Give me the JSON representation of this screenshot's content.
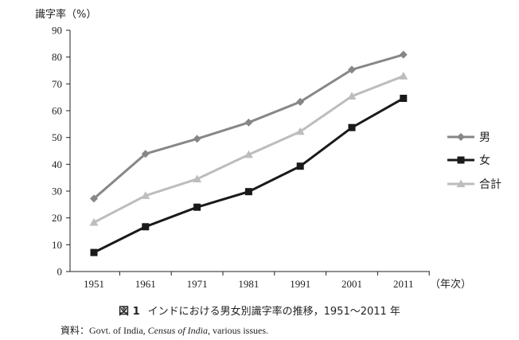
{
  "chart_data": {
    "type": "line",
    "ylabel": "識字率（%）",
    "xlabel": "（年次）",
    "ylim": [
      0,
      90
    ],
    "yticks": [
      0,
      10,
      20,
      30,
      40,
      50,
      60,
      70,
      80,
      90
    ],
    "x": [
      "1951",
      "1961",
      "1971",
      "1981",
      "1991",
      "2001",
      "2011"
    ],
    "series": [
      {
        "name": "男",
        "marker": "diamond",
        "color": "#878787",
        "values": [
          27.2,
          43.9,
          49.5,
          55.6,
          63.3,
          75.3,
          80.9
        ]
      },
      {
        "name": "女",
        "marker": "square",
        "color": "#1a1a1a",
        "values": [
          7.1,
          16.7,
          24.0,
          29.8,
          39.3,
          53.7,
          64.6
        ]
      },
      {
        "name": "合計",
        "marker": "triangle",
        "color": "#bdbdbd",
        "values": [
          18.3,
          28.3,
          34.5,
          43.6,
          52.2,
          65.4,
          72.9
        ]
      }
    ],
    "grid": false,
    "legend_position": "right"
  },
  "caption": {
    "figure_number": "図 1",
    "text": "インドにおける男女別識字率の推移，1951〜2011 年"
  },
  "source": {
    "prefix": "資料：",
    "before": "Govt. of India, ",
    "title": "Census of India",
    "after": ", various issues."
  }
}
